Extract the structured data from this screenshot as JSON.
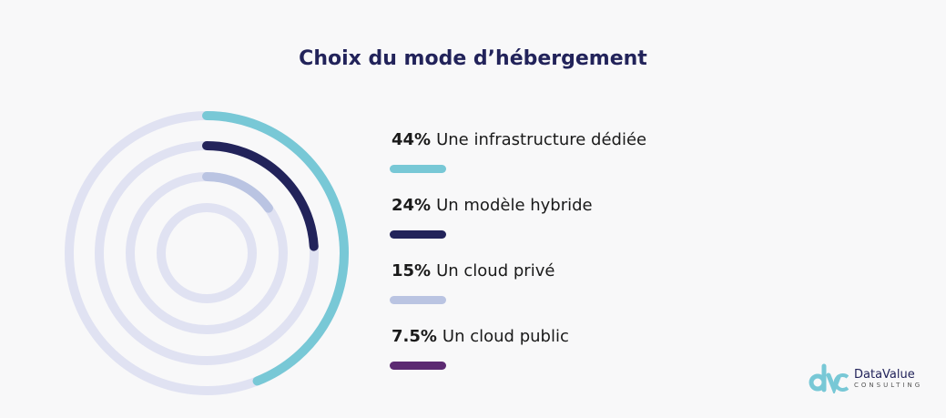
{
  "chart_data": {
    "type": "radial-bar",
    "title": "Choix du mode d’hébergement",
    "series": [
      {
        "label": "Une infrastructure dédiée",
        "value": 44,
        "value_label": "44%",
        "color": "#78c8d6"
      },
      {
        "label": "Un modèle hybride",
        "value": 24,
        "value_label": "24%",
        "color": "#22235a"
      },
      {
        "label": "Un cloud privé",
        "value": 15,
        "value_label": "15%",
        "color": "#bac4e2"
      },
      {
        "label": "Un cloud public",
        "value": 7.5,
        "value_label": "7.5%",
        "color": "#5c2a72"
      }
    ],
    "track_color": "#e0e2f2",
    "legend_placement": "right"
  },
  "logo": {
    "name": "DataValue",
    "sub": "CONSULTING",
    "mark": "dvc"
  }
}
